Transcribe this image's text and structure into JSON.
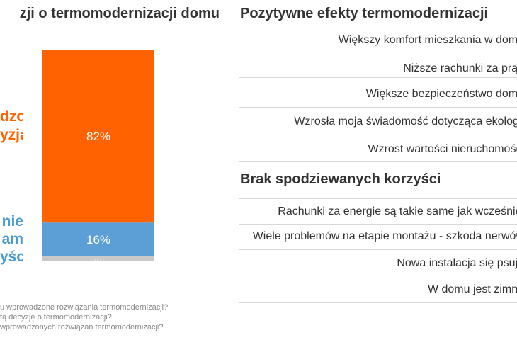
{
  "left": {
    "title": "zji o termomodernizacji domu",
    "orange_label_lines": [
      "dzo",
      "yzja"
    ],
    "blue_label_lines": [
      "nie",
      "am",
      "yści"
    ],
    "footnotes": [
      "u wprowadzone rozwiązania termomodernizacji?",
      "tą decyzję o termomodernizacji?",
      "wprowadzonych rozwiązań termomodernizacji?"
    ]
  },
  "chart_data": {
    "type": "bar",
    "stacked": true,
    "categories": [
      ""
    ],
    "series": [
      {
        "name": "",
        "values": [
          82
        ],
        "color": "#ff6200"
      },
      {
        "name": "",
        "values": [
          16
        ],
        "color": "#5b9fd6"
      },
      {
        "name": "",
        "values": [
          2
        ],
        "color": "#c8c8c8"
      }
    ],
    "value_labels": [
      "82%",
      "16%",
      "2%"
    ],
    "ylim": [
      0,
      100
    ]
  },
  "right": {
    "positive": {
      "title": "Pozytywne efekty termomodernizacji",
      "items": [
        "Większy komfort mieszkania w domu",
        "Niższe rachunki za prąd",
        "Większe bezpieczeństwo domu",
        "Wzrosła moja świadomość dotycząca ekologii",
        "Wzrost wartości nieruchomości"
      ]
    },
    "negative": {
      "title": "Brak spodziewanych korzyści",
      "items": [
        "Rachunki za energie są takie same jak wcześniej",
        "Wiele problemów na etapie montażu - szkoda nerwów",
        "Nowa instalacja się psuje",
        "W domu jest zimno"
      ]
    }
  }
}
